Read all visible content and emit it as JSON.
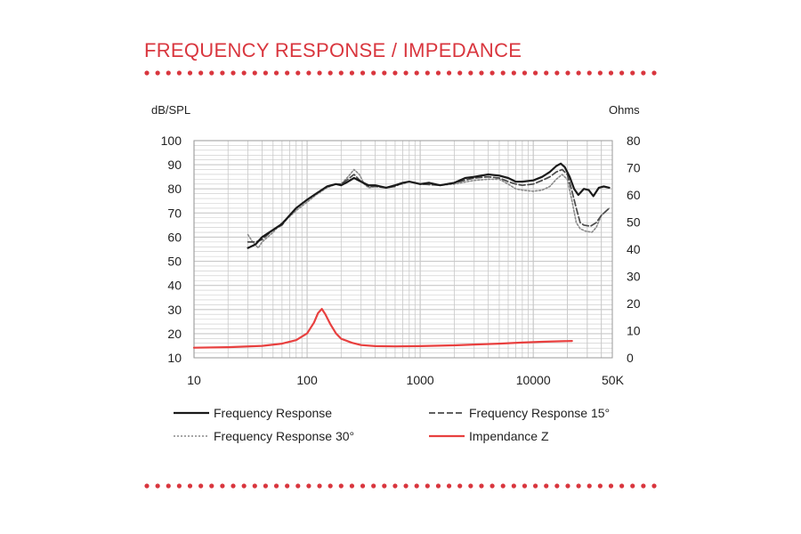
{
  "title": "FREQUENCY RESPONSE / IMPEDANCE",
  "colors": {
    "accent": "#d9363e",
    "fr": "#1a1a1a",
    "fr15": "#4a4a4a",
    "fr30": "#8a8a8a",
    "impedance": "#e8403f",
    "grid": "#c8c8c8"
  },
  "chart_data": {
    "type": "line",
    "title": "",
    "xlabel": "",
    "ylabel": "dB/SPL",
    "y2label": "Ohms",
    "xscale": "log",
    "xlim": [
      10,
      50000
    ],
    "ylim": [
      10,
      100
    ],
    "y2lim": [
      0,
      80
    ],
    "grid": true,
    "x_ticks": [
      {
        "value": 10,
        "label": "10"
      },
      {
        "value": 100,
        "label": "100"
      },
      {
        "value": 1000,
        "label": "1000"
      },
      {
        "value": 10000,
        "label": "10000"
      },
      {
        "value": 50000,
        "label": "50K"
      }
    ],
    "y_ticks": [
      "10",
      "20",
      "30",
      "40",
      "50",
      "60",
      "70",
      "80",
      "90",
      "100"
    ],
    "y2_ticks": [
      "0",
      "10",
      "20",
      "30",
      "40",
      "50",
      "60",
      "70",
      "80"
    ],
    "legend_position": "bottom",
    "series": [
      {
        "name": "Frequency Response",
        "axis": "left",
        "style": "solid",
        "points": [
          [
            30,
            55.5
          ],
          [
            35,
            57
          ],
          [
            40,
            60
          ],
          [
            50,
            63
          ],
          [
            60,
            65.5
          ],
          [
            70,
            69
          ],
          [
            80,
            72
          ],
          [
            100,
            75.5
          ],
          [
            120,
            78
          ],
          [
            150,
            81
          ],
          [
            180,
            82
          ],
          [
            200,
            81.5
          ],
          [
            230,
            83
          ],
          [
            260,
            84.5
          ],
          [
            300,
            83
          ],
          [
            350,
            81.5
          ],
          [
            400,
            81.5
          ],
          [
            500,
            80.5
          ],
          [
            600,
            81.5
          ],
          [
            700,
            82.5
          ],
          [
            800,
            83
          ],
          [
            900,
            82.5
          ],
          [
            1000,
            82
          ],
          [
            1200,
            82.5
          ],
          [
            1500,
            81.5
          ],
          [
            2000,
            82.5
          ],
          [
            2500,
            84.5
          ],
          [
            3000,
            85
          ],
          [
            4000,
            86
          ],
          [
            5000,
            85.5
          ],
          [
            6000,
            84.5
          ],
          [
            7000,
            83
          ],
          [
            8000,
            83
          ],
          [
            10000,
            83.5
          ],
          [
            12000,
            85
          ],
          [
            14000,
            87
          ],
          [
            16000,
            89.5
          ],
          [
            17500,
            90.5
          ],
          [
            19000,
            89
          ],
          [
            21000,
            85
          ],
          [
            23000,
            80
          ],
          [
            25000,
            77.5
          ],
          [
            28000,
            80
          ],
          [
            31000,
            79.5
          ],
          [
            34000,
            77
          ],
          [
            38000,
            80.5
          ],
          [
            42000,
            81
          ],
          [
            47000,
            80.5
          ]
        ]
      },
      {
        "name": "Frequency Response 15°",
        "axis": "left",
        "style": "dashed",
        "points": [
          [
            30,
            58
          ],
          [
            35,
            58
          ],
          [
            40,
            59
          ],
          [
            50,
            63
          ],
          [
            60,
            65
          ],
          [
            70,
            69
          ],
          [
            80,
            72
          ],
          [
            100,
            75.5
          ],
          [
            120,
            78
          ],
          [
            150,
            81
          ],
          [
            180,
            82
          ],
          [
            200,
            82
          ],
          [
            230,
            84
          ],
          [
            260,
            86
          ],
          [
            300,
            83
          ],
          [
            350,
            81
          ],
          [
            400,
            81
          ],
          [
            500,
            80.5
          ],
          [
            600,
            81
          ],
          [
            700,
            82.5
          ],
          [
            800,
            83
          ],
          [
            1000,
            82
          ],
          [
            1500,
            81.5
          ],
          [
            2000,
            82.5
          ],
          [
            3000,
            84.5
          ],
          [
            4000,
            85
          ],
          [
            5000,
            84.5
          ],
          [
            6000,
            83
          ],
          [
            7000,
            82
          ],
          [
            8000,
            81.5
          ],
          [
            10000,
            82
          ],
          [
            12000,
            83.5
          ],
          [
            14000,
            85
          ],
          [
            16000,
            87
          ],
          [
            18000,
            88
          ],
          [
            20000,
            86
          ],
          [
            22000,
            79
          ],
          [
            24000,
            72
          ],
          [
            26000,
            66
          ],
          [
            28000,
            65
          ],
          [
            32000,
            64.5
          ],
          [
            36000,
            66
          ],
          [
            40000,
            69
          ],
          [
            47000,
            72
          ]
        ]
      },
      {
        "name": "Frequency Response 30°",
        "axis": "left",
        "style": "dotted",
        "points": [
          [
            30,
            61
          ],
          [
            33,
            58
          ],
          [
            37,
            55.5
          ],
          [
            40,
            58
          ],
          [
            50,
            62
          ],
          [
            60,
            66
          ],
          [
            70,
            68.5
          ],
          [
            80,
            71
          ],
          [
            100,
            74.5
          ],
          [
            120,
            77.5
          ],
          [
            150,
            80.5
          ],
          [
            180,
            82
          ],
          [
            200,
            82
          ],
          [
            230,
            85
          ],
          [
            260,
            88
          ],
          [
            290,
            86
          ],
          [
            320,
            82
          ],
          [
            350,
            80.5
          ],
          [
            400,
            81
          ],
          [
            500,
            80.5
          ],
          [
            600,
            81.5
          ],
          [
            700,
            82
          ],
          [
            800,
            83
          ],
          [
            1000,
            82
          ],
          [
            1500,
            81.5
          ],
          [
            2000,
            82
          ],
          [
            3000,
            83.5
          ],
          [
            4000,
            84
          ],
          [
            5000,
            84
          ],
          [
            6000,
            82
          ],
          [
            7000,
            80
          ],
          [
            8000,
            79.5
          ],
          [
            10000,
            79
          ],
          [
            12000,
            79.5
          ],
          [
            14000,
            81
          ],
          [
            16000,
            84
          ],
          [
            18000,
            86
          ],
          [
            20000,
            84
          ],
          [
            22000,
            75
          ],
          [
            24000,
            66
          ],
          [
            26000,
            63.5
          ],
          [
            29000,
            62.5
          ],
          [
            33000,
            62
          ],
          [
            36000,
            64
          ],
          [
            40000,
            69
          ],
          [
            47000,
            72
          ]
        ]
      },
      {
        "name": "Impendance Z",
        "axis": "right",
        "style": "solid-red",
        "points": [
          [
            10,
            3.7
          ],
          [
            20,
            3.9
          ],
          [
            40,
            4.4
          ],
          [
            60,
            5.2
          ],
          [
            80,
            6.5
          ],
          [
            100,
            9
          ],
          [
            115,
            13
          ],
          [
            125,
            16.5
          ],
          [
            135,
            18
          ],
          [
            145,
            16
          ],
          [
            160,
            12.5
          ],
          [
            180,
            9
          ],
          [
            200,
            7
          ],
          [
            250,
            5.5
          ],
          [
            300,
            4.7
          ],
          [
            400,
            4.3
          ],
          [
            600,
            4.2
          ],
          [
            1000,
            4.3
          ],
          [
            2000,
            4.6
          ],
          [
            3000,
            4.9
          ],
          [
            5000,
            5.2
          ],
          [
            8000,
            5.6
          ],
          [
            12000,
            5.9
          ],
          [
            18000,
            6.1
          ],
          [
            22000,
            6.2
          ]
        ]
      }
    ]
  }
}
